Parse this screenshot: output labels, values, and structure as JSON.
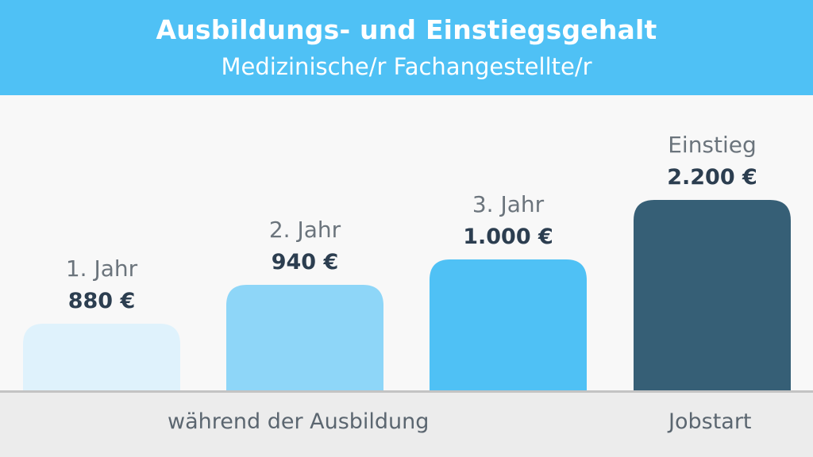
{
  "header": {
    "title": "Ausbildungs- und Einstiegsgehalt",
    "subtitle": "Medizinische/r Fachangestellte/r"
  },
  "colors": {
    "header_bg": "#4fc1f5",
    "bar_1": "#dff2fc",
    "bar_2": "#8ed6f8",
    "bar_3": "#4fc1f5",
    "bar_4": "#365f76"
  },
  "footer": {
    "group_training": "während der Ausbildung",
    "group_start": "Jobstart"
  },
  "chart_data": {
    "type": "bar",
    "title": "Ausbildungs- und Einstiegsgehalt",
    "subtitle": "Medizinische/r Fachangestellte/r",
    "categories": [
      "1. Jahr",
      "2. Jahr",
      "3. Jahr",
      "Einstieg"
    ],
    "values": [
      880,
      940,
      1000,
      2200
    ],
    "value_labels": [
      "880 €",
      "940 €",
      "1.000 €",
      "2.200 €"
    ],
    "groups": [
      "während der Ausbildung",
      "während der Ausbildung",
      "während der Ausbildung",
      "Jobstart"
    ],
    "unit": "€",
    "xlabel": "",
    "ylabel": "",
    "grid": false,
    "legend": "none"
  }
}
